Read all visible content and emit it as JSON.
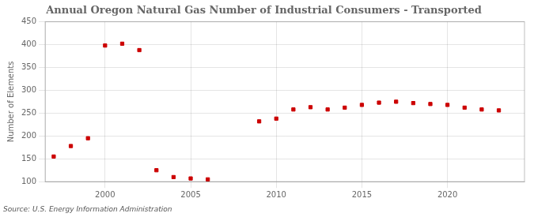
{
  "chart_data": {
    "type": "scatter",
    "title": "Annual Oregon Natural Gas Number of Industrial Consumers - Transported",
    "ylabel": "Number of Elements",
    "source": "Source: U.S. Energy Information Administration",
    "x": [
      1997,
      1998,
      1999,
      2000,
      2001,
      2002,
      2003,
      2004,
      2005,
      2006,
      2009,
      2010,
      2011,
      2012,
      2013,
      2014,
      2015,
      2016,
      2017,
      2018,
      2019,
      2020,
      2021,
      2022,
      2023
    ],
    "values": [
      155,
      178,
      195,
      398,
      402,
      388,
      125,
      110,
      107,
      105,
      232,
      238,
      258,
      263,
      258,
      262,
      268,
      273,
      275,
      272,
      270,
      268,
      262,
      258,
      256
    ],
    "color": "#cc0000",
    "marker": "square",
    "xlim": [
      1996.5,
      2024.5
    ],
    "ylim": [
      100,
      450
    ],
    "xticks": [
      2000,
      2005,
      2010,
      2015,
      2020
    ],
    "yticks": [
      100,
      150,
      200,
      250,
      300,
      350,
      400,
      450
    ],
    "grid": true
  }
}
